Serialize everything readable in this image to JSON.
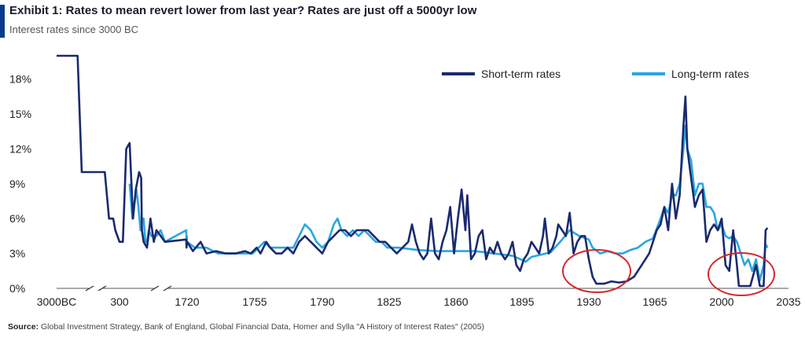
{
  "header": {
    "title": "Exhibit 1: Rates to mean revert lower from last year? Rates are just off a 5000yr low",
    "subtitle": "Interest rates since 3000 BC"
  },
  "footer": {
    "source_label": "Source:",
    "source_text": "Global Investment Strategy, Bank of England, Global Financial Data, Homer and Sylla \"A History of Interest Rates\" (2005)"
  },
  "colors": {
    "short": "#1a2a6e",
    "long": "#2aa6e0",
    "circle": "#d6262a",
    "accent": "#0b3a8c"
  },
  "chart_data": {
    "type": "line",
    "title": "",
    "xlabel": "",
    "ylabel": "",
    "y_ticks": [
      "0%",
      "3%",
      "6%",
      "9%",
      "12%",
      "15%",
      "18%"
    ],
    "ylim": [
      0,
      20
    ],
    "x_ticks": [
      "3000BC",
      "300",
      "1720",
      "1755",
      "1790",
      "1825",
      "1860",
      "1895",
      "1930",
      "1965",
      "2000",
      "2035"
    ],
    "x_axis_break_after": [
      "3000BC",
      "300"
    ],
    "legend_position": "top-right",
    "series": [
      {
        "name": "Short-term rates",
        "points": [
          [
            -3000,
            20
          ],
          [
            -2000,
            20
          ],
          [
            -1800,
            10
          ],
          [
            -700,
            10
          ],
          [
            -500,
            6
          ],
          [
            -300,
            6
          ],
          [
            -200,
            5
          ],
          [
            0,
            4
          ],
          [
            100,
            4
          ],
          [
            200,
            12
          ],
          [
            300,
            12.5
          ],
          [
            400,
            6
          ],
          [
            480,
            8.5
          ],
          [
            580,
            10
          ],
          [
            640,
            9.5
          ],
          [
            660,
            5
          ],
          [
            700,
            4
          ],
          [
            780,
            3.5
          ],
          [
            860,
            6
          ],
          [
            940,
            4
          ],
          [
            1000,
            5
          ],
          [
            1100,
            4.5
          ],
          [
            1200,
            4
          ],
          [
            1700,
            4.2
          ],
          [
            1708,
            3.5
          ],
          [
            1715,
            4
          ],
          [
            1720,
            4
          ],
          [
            1723,
            3.2
          ],
          [
            1727,
            4
          ],
          [
            1730,
            3
          ],
          [
            1735,
            3.2
          ],
          [
            1740,
            3
          ],
          [
            1745,
            3
          ],
          [
            1750,
            3.2
          ],
          [
            1753,
            3
          ],
          [
            1756,
            3.5
          ],
          [
            1758,
            3
          ],
          [
            1761,
            4
          ],
          [
            1763,
            3.5
          ],
          [
            1766,
            3
          ],
          [
            1769,
            3
          ],
          [
            1772,
            3.5
          ],
          [
            1775,
            3
          ],
          [
            1778,
            4
          ],
          [
            1781,
            4.5
          ],
          [
            1784,
            4
          ],
          [
            1787,
            3.5
          ],
          [
            1790,
            3
          ],
          [
            1793,
            4
          ],
          [
            1796,
            4.5
          ],
          [
            1799,
            5
          ],
          [
            1802,
            5
          ],
          [
            1805,
            4.5
          ],
          [
            1808,
            5
          ],
          [
            1811,
            5
          ],
          [
            1814,
            5
          ],
          [
            1817,
            4.5
          ],
          [
            1820,
            4
          ],
          [
            1823,
            4
          ],
          [
            1826,
            3.5
          ],
          [
            1829,
            3
          ],
          [
            1832,
            3.5
          ],
          [
            1835,
            4
          ],
          [
            1837,
            5.5
          ],
          [
            1839,
            4
          ],
          [
            1841,
            3
          ],
          [
            1843,
            2.5
          ],
          [
            1845,
            3
          ],
          [
            1847,
            6
          ],
          [
            1849,
            3
          ],
          [
            1851,
            2.5
          ],
          [
            1853,
            4
          ],
          [
            1855,
            5
          ],
          [
            1857,
            7
          ],
          [
            1859,
            3
          ],
          [
            1861,
            6
          ],
          [
            1863,
            8.5
          ],
          [
            1865,
            5
          ],
          [
            1866,
            8
          ],
          [
            1868,
            2.5
          ],
          [
            1870,
            3
          ],
          [
            1872,
            4.5
          ],
          [
            1874,
            5
          ],
          [
            1876,
            2.5
          ],
          [
            1878,
            3.5
          ],
          [
            1880,
            3
          ],
          [
            1882,
            4
          ],
          [
            1884,
            3
          ],
          [
            1886,
            2.5
          ],
          [
            1888,
            3
          ],
          [
            1890,
            4
          ],
          [
            1892,
            2
          ],
          [
            1894,
            1.5
          ],
          [
            1896,
            2.5
          ],
          [
            1898,
            3
          ],
          [
            1900,
            4
          ],
          [
            1902,
            3.5
          ],
          [
            1904,
            3
          ],
          [
            1906,
            4.5
          ],
          [
            1907,
            6
          ],
          [
            1909,
            3
          ],
          [
            1911,
            3.5
          ],
          [
            1913,
            4.5
          ],
          [
            1914,
            5.5
          ],
          [
            1916,
            5
          ],
          [
            1918,
            4.5
          ],
          [
            1920,
            6.5
          ],
          [
            1922,
            3
          ],
          [
            1924,
            4
          ],
          [
            1926,
            4.5
          ],
          [
            1928,
            4.5
          ],
          [
            1930,
            2.5
          ],
          [
            1932,
            1
          ],
          [
            1934,
            0.4
          ],
          [
            1938,
            0.4
          ],
          [
            1942,
            0.6
          ],
          [
            1946,
            0.5
          ],
          [
            1950,
            0.6
          ],
          [
            1954,
            1
          ],
          [
            1958,
            2
          ],
          [
            1962,
            3
          ],
          [
            1966,
            5
          ],
          [
            1968,
            5.5
          ],
          [
            1970,
            7
          ],
          [
            1972,
            5
          ],
          [
            1974,
            9
          ],
          [
            1976,
            6
          ],
          [
            1978,
            8
          ],
          [
            1980,
            14
          ],
          [
            1981,
            16.5
          ],
          [
            1982,
            12
          ],
          [
            1984,
            9.5
          ],
          [
            1986,
            7
          ],
          [
            1988,
            8
          ],
          [
            1990,
            8.5
          ],
          [
            1992,
            4
          ],
          [
            1994,
            5
          ],
          [
            1996,
            5.5
          ],
          [
            1998,
            5
          ],
          [
            2000,
            6
          ],
          [
            2002,
            2
          ],
          [
            2004,
            1.5
          ],
          [
            2006,
            5
          ],
          [
            2008,
            2
          ],
          [
            2009,
            0.2
          ],
          [
            2015,
            0.2
          ],
          [
            2018,
            2
          ],
          [
            2020,
            0.2
          ],
          [
            2022,
            0.2
          ],
          [
            2023,
            5
          ],
          [
            2024,
            5.2
          ]
        ]
      },
      {
        "name": "Long-term rates",
        "points": [
          [
            300,
            9
          ],
          [
            380,
            6
          ],
          [
            500,
            8.5
          ],
          [
            560,
            7
          ],
          [
            620,
            5
          ],
          [
            660,
            6
          ],
          [
            700,
            6
          ],
          [
            740,
            4
          ],
          [
            780,
            4
          ],
          [
            820,
            5
          ],
          [
            880,
            4.5
          ],
          [
            1000,
            4.5
          ],
          [
            1100,
            5
          ],
          [
            1200,
            4
          ],
          [
            1700,
            5
          ],
          [
            1706,
            4
          ],
          [
            1712,
            4.5
          ],
          [
            1718,
            4
          ],
          [
            1724,
            3.5
          ],
          [
            1730,
            3.5
          ],
          [
            1736,
            3
          ],
          [
            1742,
            3
          ],
          [
            1748,
            3
          ],
          [
            1754,
            3
          ],
          [
            1757,
            3.5
          ],
          [
            1760,
            4
          ],
          [
            1763,
            3.5
          ],
          [
            1766,
            3.5
          ],
          [
            1769,
            3.5
          ],
          [
            1772,
            3.5
          ],
          [
            1775,
            3.5
          ],
          [
            1778,
            4.5
          ],
          [
            1781,
            5.5
          ],
          [
            1784,
            5
          ],
          [
            1787,
            4
          ],
          [
            1790,
            3.5
          ],
          [
            1793,
            4
          ],
          [
            1796,
            5.5
          ],
          [
            1798,
            6
          ],
          [
            1800,
            5
          ],
          [
            1803,
            4.5
          ],
          [
            1806,
            5
          ],
          [
            1809,
            4.5
          ],
          [
            1812,
            5
          ],
          [
            1815,
            4.5
          ],
          [
            1818,
            4
          ],
          [
            1821,
            4
          ],
          [
            1824,
            3.5
          ],
          [
            1827,
            3.5
          ],
          [
            1830,
            3.5
          ],
          [
            1840,
            3.3
          ],
          [
            1850,
            3.2
          ],
          [
            1860,
            3.2
          ],
          [
            1870,
            3.2
          ],
          [
            1880,
            3
          ],
          [
            1890,
            2.8
          ],
          [
            1897,
            2.3
          ],
          [
            1900,
            2.7
          ],
          [
            1905,
            2.9
          ],
          [
            1910,
            3.1
          ],
          [
            1915,
            4
          ],
          [
            1920,
            5
          ],
          [
            1925,
            4.5
          ],
          [
            1930,
            4.2
          ],
          [
            1932,
            3.5
          ],
          [
            1936,
            3
          ],
          [
            1940,
            3.2
          ],
          [
            1944,
            3
          ],
          [
            1948,
            3
          ],
          [
            1952,
            3.3
          ],
          [
            1956,
            3.5
          ],
          [
            1960,
            4
          ],
          [
            1964,
            4.3
          ],
          [
            1968,
            6
          ],
          [
            1970,
            7
          ],
          [
            1972,
            6.5
          ],
          [
            1974,
            8
          ],
          [
            1976,
            8
          ],
          [
            1978,
            9
          ],
          [
            1980,
            12
          ],
          [
            1981,
            14
          ],
          [
            1982,
            12
          ],
          [
            1984,
            11
          ],
          [
            1986,
            8
          ],
          [
            1988,
            9
          ],
          [
            1990,
            9
          ],
          [
            1992,
            7
          ],
          [
            1994,
            7
          ],
          [
            1996,
            6.5
          ],
          [
            1998,
            5
          ],
          [
            2000,
            5.5
          ],
          [
            2002,
            4.5
          ],
          [
            2004,
            4.3
          ],
          [
            2006,
            4.5
          ],
          [
            2008,
            4
          ],
          [
            2010,
            3
          ],
          [
            2012,
            2
          ],
          [
            2014,
            2.5
          ],
          [
            2016,
            1.5
          ],
          [
            2018,
            2.5
          ],
          [
            2020,
            0.7
          ],
          [
            2022,
            2
          ],
          [
            2023,
            3.8
          ],
          [
            2024,
            3.5
          ]
        ]
      }
    ]
  }
}
